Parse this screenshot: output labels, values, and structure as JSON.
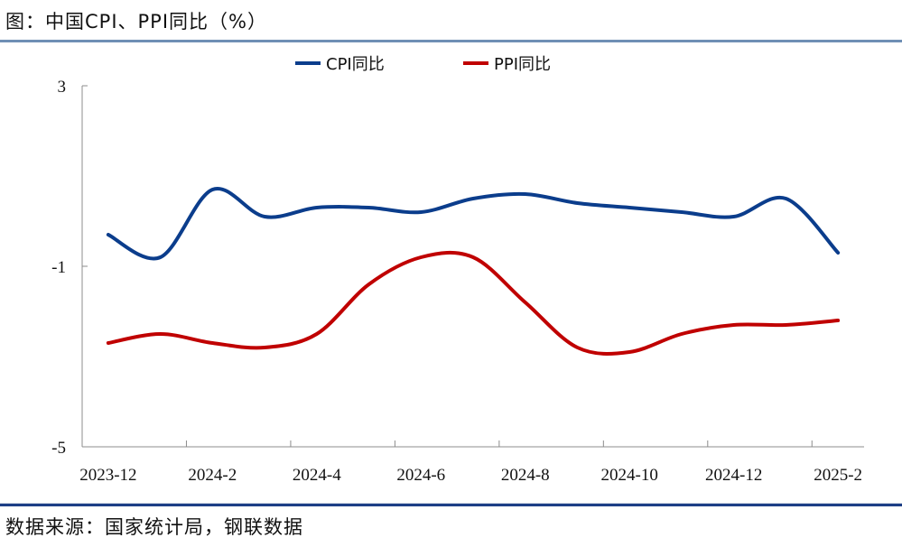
{
  "header": {
    "title": "图：中国CPI、PPI同比（%）"
  },
  "footer": {
    "source": "数据来源：国家统计局，钢联数据"
  },
  "chart_data": {
    "type": "line",
    "title": "图：中国CPI、PPI同比（%）",
    "xlabel": "",
    "ylabel": "",
    "ylim": [
      -5,
      3
    ],
    "yticks": [
      3,
      -1,
      -5
    ],
    "ytick_labels": [
      "3",
      "-1",
      "-5"
    ],
    "x": [
      "2023-12",
      "2024-1",
      "2024-2",
      "2024-3",
      "2024-4",
      "2024-5",
      "2024-6",
      "2024-7",
      "2024-8",
      "2024-9",
      "2024-10",
      "2024-11",
      "2024-12",
      "2025-1",
      "2025-2"
    ],
    "xtick_labels": [
      "2023-12",
      "2024-2",
      "2024-4",
      "2024-6",
      "2024-8",
      "2024-10",
      "2024-12",
      "2025-2"
    ],
    "grid": false,
    "legend_position": "top-center",
    "series": [
      {
        "name": "CPI同比",
        "color": "#0b3d8c",
        "values": [
          -0.3,
          -0.8,
          0.7,
          0.1,
          0.3,
          0.3,
          0.2,
          0.5,
          0.6,
          0.4,
          0.3,
          0.2,
          0.1,
          0.5,
          -0.7
        ]
      },
      {
        "name": "PPI同比",
        "color": "#c00000",
        "values": [
          -2.7,
          -2.5,
          -2.7,
          -2.8,
          -2.5,
          -1.4,
          -0.8,
          -0.8,
          -1.8,
          -2.8,
          -2.9,
          -2.5,
          -2.3,
          -2.3,
          -2.2
        ]
      }
    ]
  }
}
